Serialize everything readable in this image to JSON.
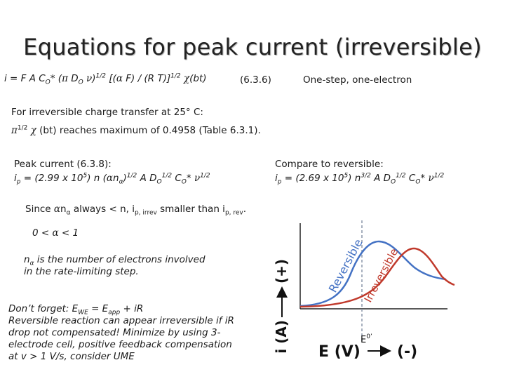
{
  "title": "Equations for peak current (irreversible)",
  "eq_main": {
    "p1": "i = F A C",
    "s1": "O",
    "p2": "* (",
    "g1": "π",
    "p3": " D",
    "s2": "O",
    "p4": " ",
    "g2": "ν",
    "p5": ")",
    "sup1": "1/2",
    "p6": " [(",
    "g3": "α",
    "p7": " F) / (R T)]",
    "sup2": "1/2",
    "p8": " ",
    "g4": "χ",
    "p9": "(bt)",
    "ref": "(6.3.6)",
    "note": "One-step, one-electron"
  },
  "charge_line": "For irreversible charge transfer at 25° C:",
  "max_line": {
    "g1": "π",
    "sup": "1/2",
    "g2": "χ",
    "text": " (bt) reaches maximum of 0.4958 (Table 6.3.1)."
  },
  "peak_label": "Peak current (6.3.8):",
  "peak_eq": {
    "p1": "i",
    "s1": "p",
    "p2": " = (2.99 x 10",
    "sup1": "5",
    "p3": ") n (",
    "g1": "α",
    "p4": "n",
    "s2": "α",
    "p5": ")",
    "sup2": "1/2",
    "p6": " A D",
    "s3": "O",
    "sup3": "1/2",
    "p7": " C",
    "s4": "O",
    "p8": "* ",
    "g2": "ν",
    "sup4": "1/2"
  },
  "compare_label": "Compare to reversible:",
  "compare_eq": {
    "p1": "i",
    "s1": "p",
    "p2": " = (2.69 x 10",
    "sup1": "5",
    "p3": ") n",
    "sup2": "3/2",
    "p4": " A D",
    "s2": "O",
    "sup3": "1/2",
    "p5": " C",
    "s3": "O",
    "p6": "* ",
    "g1": "ν",
    "sup4": "1/2"
  },
  "since_line": {
    "p1": "Since ",
    "g1": "α",
    "p2": "n",
    "s1": "α",
    "p3": " always < n, i",
    "s2": "p, irrev",
    "p4": " smaller than i",
    "s3": "p, rev",
    "p5": "."
  },
  "alpha_range": {
    "p1": "0 < ",
    "g1": "α",
    "p2": " < 1"
  },
  "n_alpha_def": {
    "p1": "n",
    "s1": "α",
    "p2": " is the number of electrons involved",
    "p3": "in the rate-limiting step."
  },
  "dont_forget": {
    "p1": "Don’t forget: E",
    "s1": "WE",
    "p2": " = E",
    "s2": "app",
    "p3": " + iR",
    "l2": "Reversible reaction can appear irreversible if iR",
    "l3": "drop not compensated! Minimize by using 3-",
    "l4": "electrode cell, positive feedback compensation",
    "l5": "at v > 1 V/s, consider UME"
  },
  "chart_data": {
    "type": "line",
    "title": "",
    "xlabel": "E (V)",
    "ylabel": "i (A)",
    "y_direction_label": "(+)",
    "x_direction_label": "(-)",
    "marker_label": "E",
    "marker_sup": "0’",
    "series": [
      {
        "name": "Reversible",
        "color": "#4472c4"
      },
      {
        "name": "Irreversible",
        "color": "#c0392b"
      }
    ],
    "colors": {
      "reversible": "#4472c4",
      "irreversible": "#c0392b",
      "marker": "#8a96a8"
    }
  }
}
